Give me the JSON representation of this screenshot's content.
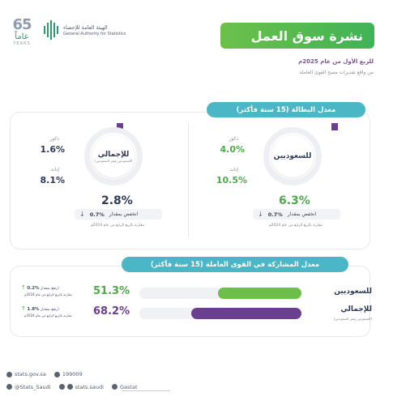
{
  "header": {
    "anniversary_number": "65",
    "anniversary_arabic": "عاماً",
    "anniversary_english": "YEARS",
    "org_arabic": "الهيئة العامة للإحصاء",
    "org_english": "General Authority for Statistics",
    "title": "نشرة سوق العمل",
    "period": "للربع الأول من عام 2025م",
    "source": "من واقع تقديرات مسح القوى العاملة"
  },
  "colors": {
    "green": "#4eaa4a",
    "purple": "#6a3f8f",
    "teal": "#4bb7c6"
  },
  "unemployment": {
    "heading": "معدل البطالة (15 سنة فأكثر)",
    "saudi": {
      "label": "للسعوديين",
      "value": "6.3%",
      "males_label": "ذكور",
      "males_value": "4.0%",
      "females_label": "إناث",
      "females_value": "10.5%",
      "change_text": "انخفض بمقدار",
      "change_value": "0.7%",
      "compare_text": "مقارنة بالربع الرابع من عام 2024م"
    },
    "total": {
      "label": "للإجمالي",
      "sublabel": "(السعوديين وغير السعوديين)",
      "value": "2.8%",
      "males_label": "ذكور",
      "males_value": "1.6%",
      "females_label": "إناث",
      "females_value": "8.1%",
      "change_text": "انخفض بمقدار",
      "change_value": "0.7%",
      "compare_text": "مقارنة بالربع الرابع من عام 2024م"
    }
  },
  "participation": {
    "heading": "معدل المشاركة في القوى العاملة (15 سنة فأكثر)",
    "rows": [
      {
        "label": "للسعوديين",
        "sublabel": "",
        "value": "51.3%",
        "fraction": 0.513,
        "change_text": "ارتفع بمقدار",
        "change_value": "0.2%",
        "compare_text": "مقارنة بالربع الرابع من عام 2024م"
      },
      {
        "label": "للإجمالي",
        "sublabel": "(السعوديين وغير السعوديين)",
        "value": "68.2%",
        "fraction": 0.682,
        "change_text": "ارتفع بمقدار",
        "change_value": "1.8%",
        "compare_text": "مقارنة بالربع الرابع من عام 2024م"
      }
    ]
  },
  "footer": {
    "website": "stats.gov.sa",
    "phone": "199009",
    "twitter": "@Stats_Saudi",
    "social": "stats.saudi",
    "brand": "Gastat"
  }
}
